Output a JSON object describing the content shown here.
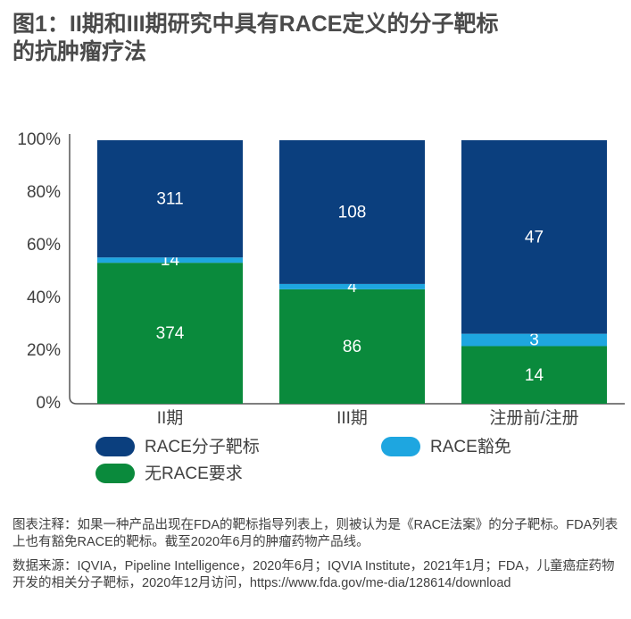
{
  "chart_data": {
    "type": "stacked-bar-100",
    "title_lines": [
      "图1：II期和III期研究中具有RACE定义的分子靶标",
      "的抗肿瘤疗法"
    ],
    "categories": [
      "II期",
      "III期",
      "注册前/注册"
    ],
    "series": [
      {
        "name": "无RACE要求",
        "color": "#0a8a3c",
        "values": [
          374,
          86,
          14
        ]
      },
      {
        "name": "RACE豁免",
        "color": "#1ea6e0",
        "values": [
          14,
          4,
          3
        ]
      },
      {
        "name": "RACE分子靶标",
        "color": "#0b3f7e",
        "values": [
          311,
          108,
          47
        ]
      }
    ],
    "ylim": [
      0,
      100
    ],
    "yticks": [
      {
        "value": 0,
        "label": "0%"
      },
      {
        "value": 20,
        "label": "20%"
      },
      {
        "value": 40,
        "label": "40%"
      },
      {
        "value": 60,
        "label": "60%"
      },
      {
        "value": 80,
        "label": "80%"
      },
      {
        "value": 100,
        "label": "100%"
      }
    ],
    "notes": [
      "图表注释：如果一种产品出现在FDA的靶标指导列表上，则被认为是《RACE法案》的分子靶标。FDA列表上也有豁免RACE的靶标。截至2020年6月的肿瘤药物产品线。",
      "数据来源：IQVIA，Pipeline Intelligence，2020年6月；IQVIA Institute，2021年1月；FDA，儿童癌症药物开发的相关分子靶标，2020年12月访问，https://www.fda.gov/me-dia/128614/download"
    ]
  }
}
